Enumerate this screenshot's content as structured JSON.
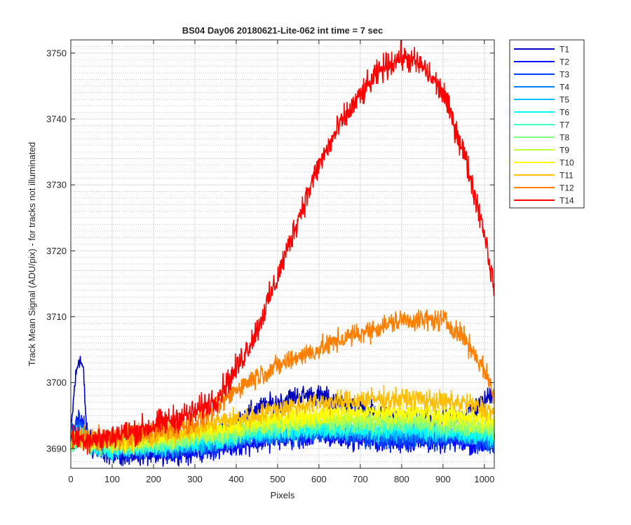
{
  "chart_data": {
    "type": "line",
    "title": "BS04 Day06 20180621-Lite-062 int time = 7 sec",
    "xlabel": "Pixels",
    "ylabel": "Track Mean Signal (ADU/pix) - for tracks not illuminated",
    "xlim": [
      0,
      1024
    ],
    "ylim": [
      3687,
      3752
    ],
    "x_ticks": [
      0,
      100,
      200,
      300,
      400,
      500,
      600,
      700,
      800,
      900,
      1000
    ],
    "y_ticks": [
      3690,
      3700,
      3710,
      3720,
      3730,
      3740,
      3750
    ],
    "y_minor_ticks": [
      3688,
      3689,
      3691,
      3692,
      3693,
      3694,
      3695,
      3696,
      3697,
      3698,
      3699,
      3701,
      3702,
      3703,
      3704,
      3705,
      3706,
      3707,
      3708,
      3709,
      3711,
      3712,
      3713,
      3714,
      3715,
      3716,
      3717,
      3718,
      3719,
      3721,
      3722,
      3723,
      3724,
      3725,
      3726,
      3727,
      3728,
      3729,
      3731,
      3732,
      3733,
      3734,
      3735,
      3736,
      3737,
      3738,
      3739,
      3741,
      3742,
      3743,
      3744,
      3745,
      3746,
      3747,
      3748,
      3749,
      3751
    ],
    "grid": "major solid, minor dotted on y",
    "legend_position": "outside top-right",
    "x": [
      0,
      10,
      20,
      30,
      40,
      50,
      75,
      100,
      150,
      200,
      250,
      300,
      350,
      400,
      450,
      500,
      550,
      600,
      650,
      700,
      750,
      800,
      850,
      900,
      950,
      1000,
      1024
    ],
    "series": [
      {
        "name": "T1",
        "color": "#0000bf",
        "values": [
          3692,
          3700,
          3704,
          3702,
          3691,
          3690,
          3689.5,
          3689.5,
          3689,
          3689,
          3689.5,
          3690,
          3692,
          3694,
          3696,
          3697,
          3698,
          3698,
          3697,
          3696,
          3695,
          3694,
          3694,
          3694,
          3695,
          3697,
          3699
        ],
        "noise": 0.8
      },
      {
        "name": "T2",
        "color": "#0000ff",
        "values": [
          3692,
          3693,
          3694.5,
          3694,
          3692,
          3691,
          3690,
          3689.5,
          3689.5,
          3689.5,
          3689.5,
          3689.5,
          3690,
          3690.5,
          3691,
          3691.5,
          3691.5,
          3692,
          3691.5,
          3691.5,
          3691,
          3691,
          3691,
          3691,
          3691,
          3690.5,
          3690.5
        ],
        "noise": 0.8
      },
      {
        "name": "T3",
        "color": "#0040ff",
        "values": [
          3692,
          3693,
          3694,
          3693.5,
          3692,
          3691,
          3690,
          3690,
          3690,
          3690,
          3690,
          3690,
          3690.5,
          3691,
          3691.5,
          3692,
          3692,
          3692.5,
          3692,
          3692,
          3691.5,
          3691.5,
          3691.5,
          3691.5,
          3691.5,
          3691,
          3691
        ],
        "noise": 0.8
      },
      {
        "name": "T4",
        "color": "#0080ff",
        "values": [
          3691.5,
          3692,
          3692.5,
          3692.5,
          3691.5,
          3690.5,
          3690,
          3690,
          3690,
          3690,
          3690,
          3690.5,
          3691,
          3691.5,
          3692,
          3692,
          3692.5,
          3692.5,
          3692.5,
          3692.5,
          3692,
          3692,
          3692,
          3692,
          3692,
          3691.5,
          3691.5
        ],
        "noise": 0.7
      },
      {
        "name": "T5",
        "color": "#00bfff",
        "values": [
          3691,
          3691.5,
          3692,
          3692,
          3691,
          3690.5,
          3690,
          3690,
          3690,
          3690,
          3690.5,
          3690.5,
          3691,
          3691.5,
          3692,
          3692.5,
          3692.5,
          3693,
          3693,
          3692.5,
          3692.5,
          3692.5,
          3692.5,
          3692.5,
          3692,
          3692,
          3692
        ],
        "noise": 0.7
      },
      {
        "name": "T6",
        "color": "#00ffff",
        "values": [
          3691,
          3691.5,
          3691.5,
          3691.5,
          3691,
          3690.5,
          3690,
          3690,
          3690,
          3690.5,
          3690.5,
          3691,
          3691.5,
          3692,
          3692.5,
          3692.5,
          3693,
          3693,
          3693,
          3693,
          3693,
          3693,
          3692.5,
          3692.5,
          3692.5,
          3692,
          3692
        ],
        "noise": 0.7
      },
      {
        "name": "T7",
        "color": "#40ffbf",
        "values": [
          3691,
          3691,
          3691.5,
          3691.5,
          3691,
          3690.5,
          3690.5,
          3690.5,
          3690.5,
          3690.5,
          3691,
          3691.5,
          3692,
          3692.5,
          3693,
          3693,
          3693.5,
          3693.5,
          3693.5,
          3693.5,
          3693.5,
          3693.5,
          3693.5,
          3693,
          3693,
          3692.5,
          3692.5
        ],
        "noise": 0.7
      },
      {
        "name": "T8",
        "color": "#80ff80",
        "values": [
          3691,
          3691,
          3691.5,
          3691.5,
          3691,
          3691,
          3690.5,
          3690.5,
          3690.5,
          3691,
          3691,
          3691.5,
          3692,
          3692.5,
          3693,
          3693.5,
          3693.5,
          3694,
          3694,
          3694,
          3694,
          3694,
          3694,
          3693.5,
          3693.5,
          3693,
          3693
        ],
        "noise": 0.7
      },
      {
        "name": "T9",
        "color": "#bfff40",
        "values": [
          3691,
          3691.5,
          3691.5,
          3691.5,
          3691,
          3691,
          3691,
          3691,
          3691,
          3691,
          3691.5,
          3692,
          3692.5,
          3693,
          3693.5,
          3694,
          3694,
          3694.5,
          3694.5,
          3694.5,
          3694.5,
          3694.5,
          3694.5,
          3694,
          3694,
          3693.5,
          3693.5
        ],
        "noise": 0.7
      },
      {
        "name": "T10",
        "color": "#ffff00",
        "values": [
          3691,
          3691.5,
          3691.5,
          3691.5,
          3691.5,
          3691,
          3691,
          3691,
          3691,
          3691.5,
          3692,
          3692.5,
          3693,
          3693.5,
          3694,
          3694.5,
          3695,
          3695,
          3695.5,
          3695.5,
          3695.5,
          3695.5,
          3695.5,
          3695,
          3695,
          3694.5,
          3694
        ],
        "noise": 0.7
      },
      {
        "name": "T11",
        "color": "#ffbf00",
        "values": [
          3691.5,
          3691.5,
          3692,
          3692,
          3691.5,
          3691.5,
          3691.5,
          3691.5,
          3691.5,
          3692,
          3692.5,
          3693,
          3694,
          3694.5,
          3695,
          3696,
          3696.5,
          3697,
          3697,
          3697.5,
          3697.5,
          3697.5,
          3697.5,
          3697,
          3697,
          3696,
          3695.5
        ],
        "noise": 0.8
      },
      {
        "name": "T12",
        "color": "#ff8000",
        "values": [
          3691.5,
          3691.5,
          3691.5,
          3691.5,
          3691.5,
          3691.5,
          3691.5,
          3691.5,
          3692,
          3692.5,
          3693,
          3694,
          3696,
          3699,
          3701,
          3702.5,
          3704,
          3705,
          3706.5,
          3707.5,
          3708.5,
          3709.5,
          3709.5,
          3709.5,
          3707,
          3702,
          3698
        ],
        "noise": 0.8
      },
      {
        "name": "T14",
        "color": "#ff0000",
        "values": [
          3691.5,
          3691.5,
          3691.5,
          3691.5,
          3691.5,
          3691.5,
          3691.5,
          3692,
          3692.5,
          3693.5,
          3694.5,
          3695.5,
          3697.5,
          3702,
          3708,
          3716,
          3725,
          3733,
          3739,
          3743.5,
          3747.5,
          3749.5,
          3748,
          3744,
          3735,
          3723,
          3714
        ],
        "noise": 1.0
      }
    ]
  }
}
